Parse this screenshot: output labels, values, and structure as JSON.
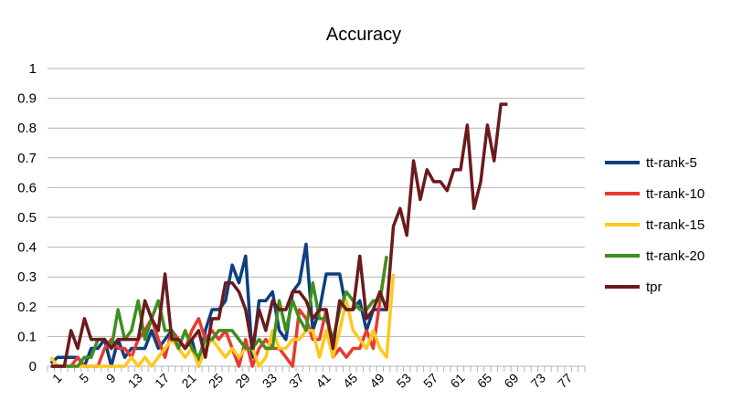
{
  "chart_data": {
    "type": "line",
    "title": "Accuracy",
    "xlabel": "",
    "ylabel": "",
    "ylim": [
      0,
      1
    ],
    "y_ticks": [
      "0",
      "0.1",
      "0.2",
      "0.3",
      "0.4",
      "0.5",
      "0.6",
      "0.7",
      "0.8",
      "0.9",
      "1"
    ],
    "x_count": 80,
    "x_ticks": [
      "1",
      "5",
      "9",
      "13",
      "17",
      "21",
      "25",
      "29",
      "33",
      "37",
      "41",
      "45",
      "49",
      "53",
      "57",
      "61",
      "65",
      "69",
      "73",
      "77"
    ],
    "grid": "horizontal",
    "legend_position": "right",
    "series": [
      {
        "name": "tt-rank-5",
        "color": "#0e3f7e",
        "values": [
          0.01,
          0.03,
          0.03,
          0.03,
          0.03,
          0.0,
          0.06,
          0.06,
          0.09,
          0.0,
          0.09,
          0.03,
          0.06,
          0.06,
          0.06,
          0.12,
          0.06,
          0.09,
          0.12,
          0.09,
          0.06,
          0.09,
          0.0,
          0.12,
          0.19,
          0.19,
          0.22,
          0.34,
          0.28,
          0.37,
          0.03,
          0.22,
          0.22,
          0.25,
          0.12,
          0.09,
          0.25,
          0.28,
          0.41,
          0.12,
          0.19,
          0.31,
          0.31,
          0.31,
          0.19,
          0.19,
          0.22,
          0.12,
          0.19,
          0.19,
          0.19
        ]
      },
      {
        "name": "tt-rank-10",
        "color": "#e83a2e",
        "values": [
          0.0,
          0.0,
          0.0,
          0.0,
          0.03,
          0.0,
          0.0,
          0.0,
          0.06,
          0.09,
          0.06,
          0.06,
          0.03,
          0.09,
          0.12,
          0.16,
          0.09,
          0.03,
          0.12,
          0.09,
          0.06,
          0.12,
          0.16,
          0.09,
          0.12,
          0.09,
          0.12,
          0.06,
          0.0,
          0.09,
          0.0,
          0.06,
          0.09,
          0.06,
          0.06,
          0.03,
          0.0,
          0.19,
          0.16,
          0.09,
          0.09,
          0.19,
          0.03,
          0.06,
          0.03,
          0.06,
          0.06,
          0.12,
          0.06,
          0.22,
          0.37
        ]
      },
      {
        "name": "tt-rank-15",
        "color": "#ffc820",
        "values": [
          0.03,
          0.0,
          0.0,
          0.0,
          0.0,
          0.0,
          0.0,
          0.0,
          0.0,
          0.0,
          0.0,
          0.0,
          0.03,
          0.0,
          0.03,
          0.0,
          0.03,
          0.06,
          0.09,
          0.06,
          0.03,
          0.06,
          0.0,
          0.06,
          0.09,
          0.06,
          0.03,
          0.06,
          0.03,
          0.06,
          0.06,
          0.0,
          0.03,
          0.12,
          0.06,
          0.06,
          0.09,
          0.09,
          0.12,
          0.12,
          0.03,
          0.12,
          0.03,
          0.12,
          0.22,
          0.12,
          0.09,
          0.06,
          0.12,
          0.06,
          0.03,
          0.31
        ]
      },
      {
        "name": "tt-rank-20",
        "color": "#3f8f1f",
        "values": [
          0.0,
          0.0,
          0.0,
          0.0,
          0.0,
          0.03,
          0.03,
          0.09,
          0.09,
          0.06,
          0.19,
          0.09,
          0.12,
          0.22,
          0.09,
          0.16,
          0.22,
          0.12,
          0.12,
          0.06,
          0.12,
          0.06,
          0.03,
          0.09,
          0.09,
          0.12,
          0.12,
          0.12,
          0.09,
          0.06,
          0.06,
          0.09,
          0.06,
          0.06,
          0.22,
          0.12,
          0.22,
          0.16,
          0.12,
          0.28,
          0.16,
          0.16,
          0.09,
          0.19,
          0.25,
          0.22,
          0.19,
          0.19,
          0.22,
          0.22,
          0.37
        ]
      },
      {
        "name": "tpr",
        "color": "#6b1a1e",
        "values": [
          0.0,
          0.0,
          0.0,
          0.12,
          0.06,
          0.16,
          0.09,
          0.09,
          0.09,
          0.06,
          0.09,
          0.09,
          0.09,
          0.09,
          0.22,
          0.16,
          0.12,
          0.31,
          0.09,
          0.09,
          0.06,
          0.09,
          0.12,
          0.03,
          0.16,
          0.16,
          0.28,
          0.28,
          0.25,
          0.19,
          0.06,
          0.19,
          0.12,
          0.22,
          0.19,
          0.19,
          0.25,
          0.25,
          0.22,
          0.16,
          0.19,
          0.19,
          0.06,
          0.22,
          0.19,
          0.19,
          0.37,
          0.16,
          0.19,
          0.25,
          0.19,
          0.47,
          0.53,
          0.44,
          0.69,
          0.56,
          0.66,
          0.62,
          0.62,
          0.59,
          0.66,
          0.66,
          0.81,
          0.53,
          0.62,
          0.81,
          0.69,
          0.88,
          0.88
        ]
      }
    ]
  }
}
